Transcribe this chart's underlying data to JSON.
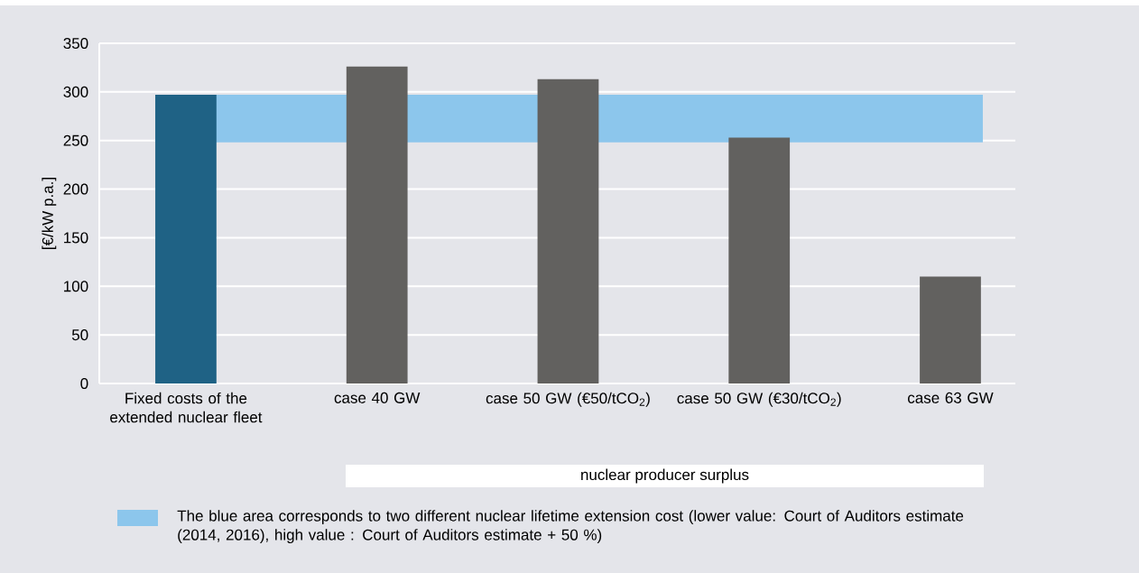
{
  "chart_data": {
    "type": "bar",
    "ylabel": "[€/kW p.a.]",
    "categories": [
      "Fixed costs of the extended nuclear fleet",
      "case 40 GW",
      "case 50 GW (€50/tCO$_{2}$)",
      "case 50 GW (€30/tCO$_{2}$)",
      "case 63 GW"
    ],
    "values": [
      297,
      326,
      313,
      253,
      110
    ],
    "colors": [
      "#1f6285",
      "#62615f",
      "#62615f",
      "#62615f",
      "#62615f"
    ],
    "ylim": [
      0,
      350
    ],
    "yticks": [
      0,
      50,
      100,
      150,
      200,
      250,
      300,
      350
    ],
    "grid": "y",
    "bands": [
      {
        "axis": "y",
        "from": 248,
        "to": 297,
        "color": "#8cc6ec",
        "label": "The blue area corresponds to two different nuclear lifetime extension cost (lower value: Court of Auditors estimate (2014, 2016), high value : Court of Auditors estimate + 50 %)"
      }
    ],
    "annotations": [
      "nuclear producer surplus"
    ],
    "legend": "bottom"
  }
}
